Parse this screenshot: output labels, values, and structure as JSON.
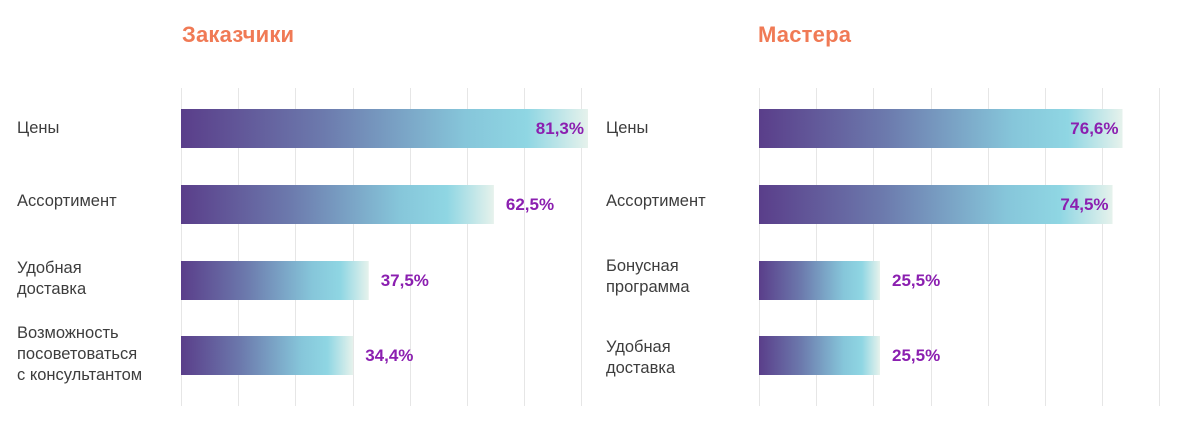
{
  "colors": {
    "title": "#f07a55",
    "value_label": "#8b1fb0",
    "bar_gradient": [
      "#5a3e8a",
      "#6c7aad",
      "#86c6da",
      "#8fd6e3",
      "#e6f2ec"
    ],
    "grid": "#e6e6e6",
    "category_text": "#3d3d3d"
  },
  "chart_data": [
    {
      "type": "bar",
      "orientation": "horizontal",
      "title": "Заказчики",
      "categories": [
        "Цены",
        "Ассортимент",
        "Удобная\nдоставка",
        "Возможность\nпосоветоваться\nс консультантом"
      ],
      "values": [
        81.3,
        62.5,
        37.5,
        34.4
      ],
      "value_labels": [
        "81,3%",
        "62,5%",
        "37,5%",
        "34,4%"
      ],
      "unit": "%",
      "xlim": [
        0,
        81.3
      ],
      "grid": true,
      "legend": "none"
    },
    {
      "type": "bar",
      "orientation": "horizontal",
      "title": "Мастера",
      "categories": [
        "Цены",
        "Ассортимент",
        "Бонусная\nпрограмма",
        "Удобная\nдоставка"
      ],
      "values": [
        76.6,
        74.5,
        25.5,
        25.5
      ],
      "value_labels": [
        "76,6%",
        "74,5%",
        "25,5%",
        "25,5%"
      ],
      "unit": "%",
      "xlim": [
        0,
        80.5
      ],
      "grid": true,
      "legend": "none"
    }
  ]
}
